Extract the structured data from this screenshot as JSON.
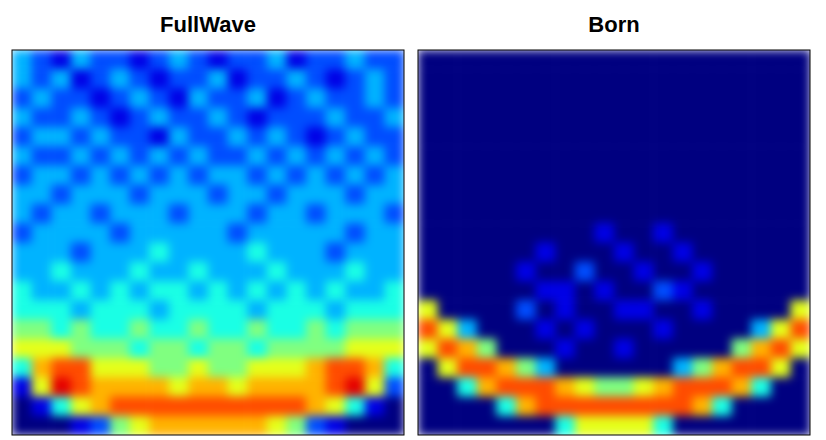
{
  "chart_data": [
    {
      "type": "heatmap",
      "title": "FullWave",
      "zlim": [
        0,
        10
      ],
      "tick_labels": false,
      "cells": [
        [
          3,
          2,
          1,
          3,
          2,
          2,
          1,
          2,
          3,
          2,
          1,
          2,
          2,
          3,
          1,
          2,
          2,
          3,
          2,
          2
        ],
        [
          3,
          2,
          3,
          1,
          2,
          3,
          2,
          1,
          2,
          2,
          3,
          1,
          2,
          2,
          3,
          2,
          1,
          2,
          3,
          2
        ],
        [
          2,
          3,
          2,
          2,
          1,
          2,
          3,
          2,
          1,
          3,
          2,
          2,
          3,
          1,
          2,
          3,
          2,
          2,
          3,
          2
        ],
        [
          3,
          2,
          2,
          3,
          2,
          1,
          2,
          3,
          2,
          2,
          3,
          2,
          1,
          2,
          2,
          2,
          3,
          2,
          2,
          3
        ],
        [
          2,
          3,
          3,
          2,
          3,
          2,
          2,
          1,
          3,
          2,
          2,
          3,
          2,
          3,
          2,
          1,
          2,
          3,
          2,
          2
        ],
        [
          3,
          2,
          2,
          3,
          2,
          3,
          2,
          3,
          2,
          3,
          2,
          2,
          3,
          2,
          3,
          2,
          3,
          2,
          3,
          2
        ],
        [
          2,
          3,
          3,
          2,
          3,
          2,
          3,
          2,
          3,
          2,
          3,
          3,
          2,
          3,
          2,
          3,
          2,
          3,
          2,
          3
        ],
        [
          3,
          3,
          2,
          3,
          3,
          3,
          2,
          3,
          3,
          3,
          2,
          3,
          3,
          2,
          3,
          3,
          3,
          2,
          3,
          3
        ],
        [
          3,
          2,
          3,
          3,
          2,
          3,
          3,
          3,
          2,
          3,
          3,
          3,
          2,
          3,
          3,
          2,
          3,
          3,
          3,
          2
        ],
        [
          2,
          3,
          3,
          3,
          3,
          2,
          3,
          3,
          3,
          3,
          3,
          2,
          3,
          3,
          3,
          3,
          3,
          2,
          3,
          3
        ],
        [
          3,
          3,
          3,
          2,
          3,
          3,
          3,
          4,
          3,
          3,
          3,
          3,
          4,
          3,
          3,
          3,
          2,
          3,
          3,
          3
        ],
        [
          3,
          3,
          4,
          3,
          3,
          3,
          4,
          3,
          3,
          4,
          3,
          3,
          3,
          4,
          3,
          3,
          3,
          4,
          3,
          3
        ],
        [
          4,
          3,
          3,
          4,
          3,
          4,
          3,
          4,
          4,
          3,
          4,
          3,
          4,
          3,
          4,
          3,
          4,
          3,
          3,
          4
        ],
        [
          4,
          4,
          4,
          3,
          4,
          4,
          4,
          3,
          4,
          4,
          4,
          4,
          3,
          4,
          4,
          4,
          3,
          4,
          4,
          4
        ],
        [
          5,
          5,
          4,
          5,
          4,
          4,
          5,
          4,
          4,
          5,
          4,
          4,
          5,
          4,
          4,
          5,
          4,
          5,
          5,
          5
        ],
        [
          6,
          6,
          6,
          5,
          5,
          5,
          4,
          5,
          5,
          4,
          5,
          5,
          4,
          5,
          5,
          5,
          5,
          6,
          6,
          6
        ],
        [
          4,
          7,
          8,
          8,
          6,
          6,
          6,
          5,
          5,
          6,
          5,
          5,
          6,
          6,
          6,
          7,
          8,
          8,
          7,
          4
        ],
        [
          1,
          6,
          9,
          8,
          7,
          7,
          7,
          7,
          6,
          7,
          7,
          6,
          7,
          7,
          7,
          7,
          8,
          9,
          6,
          2
        ],
        [
          0,
          1,
          4,
          6,
          7,
          8,
          8,
          8,
          8,
          8,
          8,
          8,
          8,
          8,
          8,
          7,
          6,
          4,
          1,
          0
        ],
        [
          0,
          0,
          0,
          1,
          2,
          5,
          6,
          7,
          7,
          7,
          7,
          7,
          7,
          6,
          5,
          2,
          1,
          0,
          0,
          0
        ]
      ]
    },
    {
      "type": "heatmap",
      "title": "Born",
      "zlim": [
        0,
        10
      ],
      "tick_labels": false,
      "cells": [
        [
          0,
          0,
          0,
          0,
          0,
          0,
          0,
          0,
          0,
          0,
          0,
          0,
          0,
          0,
          0,
          0,
          0,
          0,
          0,
          0
        ],
        [
          0,
          0,
          0,
          0,
          0,
          0,
          0,
          0,
          0,
          0,
          0,
          0,
          0,
          0,
          0,
          0,
          0,
          0,
          0,
          0
        ],
        [
          0,
          0,
          0,
          0,
          0,
          0,
          0,
          0,
          0,
          0,
          0,
          0,
          0,
          0,
          0,
          0,
          0,
          0,
          0,
          0
        ],
        [
          0,
          0,
          0,
          0,
          0,
          0,
          0,
          0,
          0,
          0,
          0,
          0,
          0,
          0,
          0,
          0,
          0,
          0,
          0,
          0
        ],
        [
          0,
          0,
          0,
          0,
          0,
          0,
          0,
          0,
          0,
          0,
          0,
          0,
          0,
          0,
          0,
          0,
          0,
          0,
          0,
          0
        ],
        [
          0,
          0,
          0,
          0,
          0,
          0,
          0,
          0,
          0,
          0,
          0,
          0,
          0,
          0,
          0,
          0,
          0,
          0,
          0,
          0
        ],
        [
          0,
          0,
          0,
          0,
          0,
          0,
          0,
          0,
          0,
          0,
          0,
          0,
          0,
          0,
          0,
          0,
          0,
          0,
          0,
          0
        ],
        [
          0,
          0,
          0,
          0,
          0,
          0,
          0,
          0,
          0,
          0,
          0,
          0,
          0,
          0,
          0,
          0,
          0,
          0,
          0,
          0
        ],
        [
          0,
          0,
          0,
          0,
          0,
          0,
          0,
          0,
          0,
          0,
          0,
          0,
          0,
          0,
          0,
          0,
          0,
          0,
          0,
          0
        ],
        [
          0,
          0,
          0,
          0,
          0,
          0,
          0,
          0,
          0,
          1,
          0,
          0,
          1,
          0,
          0,
          0,
          0,
          0,
          0,
          0
        ],
        [
          0,
          0,
          0,
          0,
          0,
          0,
          1,
          0,
          0,
          0,
          1,
          0,
          0,
          1,
          0,
          0,
          0,
          0,
          0,
          0
        ],
        [
          0,
          0,
          0,
          0,
          0,
          1,
          0,
          0,
          2,
          0,
          0,
          1,
          0,
          0,
          1,
          0,
          0,
          0,
          0,
          0
        ],
        [
          0,
          0,
          0,
          0,
          0,
          0,
          1,
          1,
          0,
          1,
          0,
          0,
          2,
          1,
          0,
          0,
          0,
          0,
          0,
          0
        ],
        [
          6,
          0,
          0,
          0,
          0,
          2,
          0,
          1,
          0,
          0,
          1,
          1,
          0,
          0,
          1,
          0,
          0,
          0,
          0,
          6
        ],
        [
          8,
          6,
          3,
          0,
          0,
          0,
          1,
          0,
          1,
          0,
          0,
          0,
          1,
          0,
          0,
          0,
          0,
          3,
          6,
          8
        ],
        [
          6,
          8,
          7,
          5,
          0,
          0,
          0,
          1,
          0,
          0,
          1,
          0,
          0,
          0,
          0,
          0,
          5,
          7,
          8,
          6
        ],
        [
          0,
          6,
          8,
          8,
          7,
          5,
          3,
          0,
          0,
          0,
          0,
          0,
          0,
          3,
          5,
          7,
          8,
          8,
          6,
          0
        ],
        [
          0,
          0,
          4,
          7,
          8,
          8,
          8,
          7,
          6,
          5,
          5,
          6,
          7,
          8,
          8,
          8,
          7,
          4,
          0,
          0
        ],
        [
          0,
          0,
          0,
          0,
          4,
          7,
          8,
          8,
          8,
          8,
          8,
          8,
          8,
          8,
          7,
          4,
          0,
          0,
          0,
          0
        ],
        [
          0,
          0,
          0,
          0,
          0,
          0,
          0,
          4,
          6,
          6,
          6,
          6,
          4,
          0,
          0,
          0,
          0,
          0,
          0,
          0
        ]
      ]
    }
  ]
}
